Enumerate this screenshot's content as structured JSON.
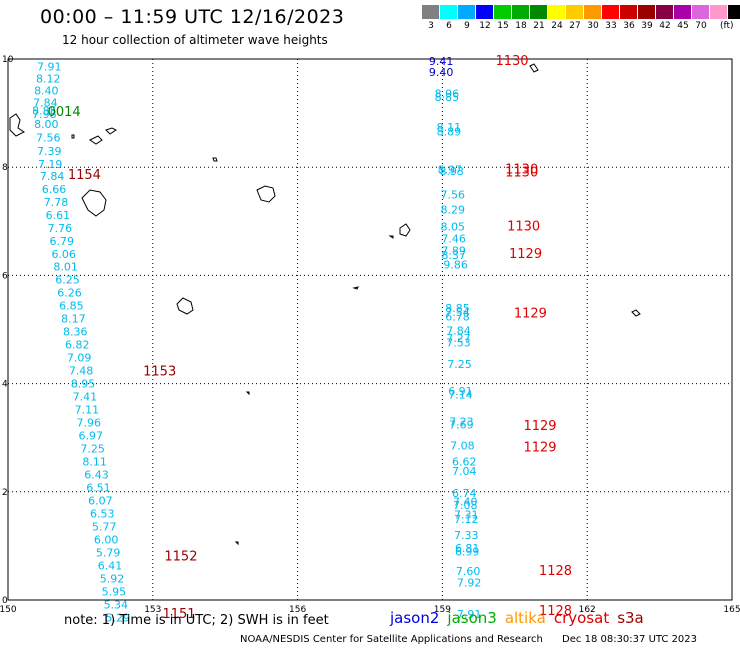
{
  "title": "00:00 – 11:59 UTC 12/16/2023",
  "subtitle": "12 hour collection of altimeter wave heights",
  "colorbar": {
    "colors": [
      "#808080",
      "#00ffff",
      "#00aaff",
      "#0000ff",
      "#00cc00",
      "#00aa00",
      "#008800",
      "#ffff00",
      "#ffcc00",
      "#ff9900",
      "#ff0000",
      "#cc0000",
      "#990000",
      "#880044",
      "#aa00aa",
      "#dd66dd",
      "#ff99cc",
      "#000000"
    ],
    "labels": [
      "3",
      "6",
      "9",
      "12",
      "15",
      "18",
      "21",
      "24",
      "27",
      "30",
      "33",
      "36",
      "39",
      "42",
      "45",
      "70"
    ],
    "unit": "(ft)"
  },
  "axes": {
    "x_ticks": [
      "150",
      "153",
      "156",
      "159",
      "162",
      "165"
    ],
    "y_ticks": [
      "0",
      "2",
      "4",
      "6",
      "8",
      "10"
    ]
  },
  "tracks": [
    {
      "satellite": "cryosat",
      "color": "#00bbee",
      "points": [
        {
          "lon": 150.6,
          "lat": 9.86,
          "v": "7.91"
        },
        {
          "lon": 150.58,
          "lat": 9.64,
          "v": "8.12"
        },
        {
          "lon": 150.54,
          "lat": 9.42,
          "v": "8.40"
        },
        {
          "lon": 150.52,
          "lat": 9.2,
          "v": "7.84"
        },
        {
          "lon": 150.5,
          "lat": 9.05,
          "v": "8.85"
        },
        {
          "lon": 150.5,
          "lat": 8.98,
          "v": "7.98"
        },
        {
          "lon": 150.54,
          "lat": 8.8,
          "v": "8.00"
        },
        {
          "lon": 150.58,
          "lat": 8.55,
          "v": "7.56"
        },
        {
          "lon": 150.6,
          "lat": 8.3,
          "v": "7.39"
        },
        {
          "lon": 150.62,
          "lat": 8.06,
          "v": "7.19"
        },
        {
          "lon": 150.66,
          "lat": 7.84,
          "v": "7.84"
        },
        {
          "lon": 150.7,
          "lat": 7.6,
          "v": "6.66"
        },
        {
          "lon": 150.74,
          "lat": 7.36,
          "v": "7.78"
        },
        {
          "lon": 150.78,
          "lat": 7.12,
          "v": "6.61"
        },
        {
          "lon": 150.82,
          "lat": 6.88,
          "v": "7.76"
        },
        {
          "lon": 150.86,
          "lat": 6.64,
          "v": "6.79"
        },
        {
          "lon": 150.9,
          "lat": 6.4,
          "v": "6.06"
        },
        {
          "lon": 150.94,
          "lat": 6.16,
          "v": "8.01"
        },
        {
          "lon": 150.98,
          "lat": 5.92,
          "v": "6.25"
        },
        {
          "lon": 151.02,
          "lat": 5.68,
          "v": "6.26"
        },
        {
          "lon": 151.06,
          "lat": 5.44,
          "v": "6.85"
        },
        {
          "lon": 151.1,
          "lat": 5.2,
          "v": "8.17"
        },
        {
          "lon": 151.14,
          "lat": 4.96,
          "v": "8.36"
        },
        {
          "lon": 151.18,
          "lat": 4.72,
          "v": "6.82"
        },
        {
          "lon": 151.22,
          "lat": 4.48,
          "v": "7.09"
        },
        {
          "lon": 151.26,
          "lat": 4.24,
          "v": "7.48"
        },
        {
          "lon": 151.3,
          "lat": 4.0,
          "v": "8.95"
        },
        {
          "lon": 151.34,
          "lat": 3.76,
          "v": "7.41"
        },
        {
          "lon": 151.38,
          "lat": 3.52,
          "v": "7.11"
        },
        {
          "lon": 151.42,
          "lat": 3.28,
          "v": "7.96"
        },
        {
          "lon": 151.46,
          "lat": 3.04,
          "v": "6.97"
        },
        {
          "lon": 151.5,
          "lat": 2.8,
          "v": "7.25"
        },
        {
          "lon": 151.54,
          "lat": 2.56,
          "v": "8.11"
        },
        {
          "lon": 151.58,
          "lat": 2.32,
          "v": "6.43"
        },
        {
          "lon": 151.62,
          "lat": 2.08,
          "v": "6.51"
        },
        {
          "lon": 151.66,
          "lat": 1.84,
          "v": "6.07"
        },
        {
          "lon": 151.7,
          "lat": 1.6,
          "v": "6.53"
        },
        {
          "lon": 151.74,
          "lat": 1.36,
          "v": "5.77"
        },
        {
          "lon": 151.78,
          "lat": 1.12,
          "v": "6.00"
        },
        {
          "lon": 151.82,
          "lat": 0.88,
          "v": "5.79"
        },
        {
          "lon": 151.86,
          "lat": 0.64,
          "v": "6.41"
        },
        {
          "lon": 151.9,
          "lat": 0.4,
          "v": "5.92"
        },
        {
          "lon": 151.94,
          "lat": 0.16,
          "v": "5.95"
        },
        {
          "lon": 151.98,
          "lat": -0.08,
          "v": "5.34"
        },
        {
          "lon": 152.02,
          "lat": -0.32,
          "v": "5.29"
        }
      ]
    },
    {
      "satellite": "jason3",
      "color": "#00bbee",
      "points": [
        {
          "lon": 158.88,
          "lat": 8.74,
          "v": "8.11"
        },
        {
          "lon": 158.88,
          "lat": 8.66,
          "v": "8.89"
        },
        {
          "lon": 158.84,
          "lat": 9.36,
          "v": "8.96"
        },
        {
          "lon": 158.84,
          "lat": 9.3,
          "v": "8.85"
        },
        {
          "lon": 158.9,
          "lat": 7.96,
          "v": "8.97"
        },
        {
          "lon": 158.94,
          "lat": 7.93,
          "v": "8.93"
        },
        {
          "lon": 158.96,
          "lat": 7.5,
          "v": "7.56"
        },
        {
          "lon": 158.96,
          "lat": 7.22,
          "v": "8.29"
        },
        {
          "lon": 158.96,
          "lat": 6.9,
          "v": "8.05"
        },
        {
          "lon": 158.98,
          "lat": 6.68,
          "v": "7.46"
        },
        {
          "lon": 158.98,
          "lat": 6.46,
          "v": "7.89"
        },
        {
          "lon": 158.98,
          "lat": 6.38,
          "v": "8.37"
        },
        {
          "lon": 159.02,
          "lat": 6.2,
          "v": "9.86"
        },
        {
          "lon": 159.06,
          "lat": 5.4,
          "v": "8.85"
        },
        {
          "lon": 159.06,
          "lat": 5.32,
          "v": "7.54"
        },
        {
          "lon": 159.06,
          "lat": 5.24,
          "v": "6.78"
        },
        {
          "lon": 159.08,
          "lat": 4.98,
          "v": "7.84"
        },
        {
          "lon": 159.08,
          "lat": 4.84,
          "v": "7.27"
        },
        {
          "lon": 159.08,
          "lat": 4.76,
          "v": "7.53"
        },
        {
          "lon": 159.1,
          "lat": 4.36,
          "v": "7.25"
        },
        {
          "lon": 159.12,
          "lat": 3.86,
          "v": "6.91"
        },
        {
          "lon": 159.12,
          "lat": 3.8,
          "v": "7.14"
        },
        {
          "lon": 159.14,
          "lat": 3.3,
          "v": "7.23"
        },
        {
          "lon": 159.14,
          "lat": 3.24,
          "v": "7.69"
        },
        {
          "lon": 159.16,
          "lat": 2.86,
          "v": "7.08"
        },
        {
          "lon": 159.2,
          "lat": 2.56,
          "v": "6.62"
        },
        {
          "lon": 159.2,
          "lat": 2.38,
          "v": "7.04"
        },
        {
          "lon": 159.2,
          "lat": 1.98,
          "v": "6.74"
        },
        {
          "lon": 159.22,
          "lat": 1.82,
          "v": "7.40"
        },
        {
          "lon": 159.22,
          "lat": 1.76,
          "v": "7.08"
        },
        {
          "lon": 159.24,
          "lat": 1.58,
          "v": "7.31"
        },
        {
          "lon": 159.24,
          "lat": 1.5,
          "v": "7.12"
        },
        {
          "lon": 159.24,
          "lat": 1.2,
          "v": "7.33"
        },
        {
          "lon": 159.26,
          "lat": 0.96,
          "v": "6.81"
        },
        {
          "lon": 159.26,
          "lat": 0.9,
          "v": "6.99"
        },
        {
          "lon": 159.28,
          "lat": 0.54,
          "v": "7.60"
        },
        {
          "lon": 159.3,
          "lat": 0.32,
          "v": "7.92"
        },
        {
          "lon": 159.3,
          "lat": -0.26,
          "v": "7.91"
        }
      ]
    },
    {
      "satellite": "jason2",
      "color": "#0000cc",
      "points": [
        {
          "lon": 158.72,
          "lat": 9.96,
          "v": "9.41"
        },
        {
          "lon": 158.72,
          "lat": 9.76,
          "v": "9.40"
        }
      ]
    }
  ],
  "time_labels": [
    {
      "lon": 160.1,
      "lat": 9.96,
      "text": "1130",
      "color": "#e00000"
    },
    {
      "lon": 150.82,
      "lat": 9.02,
      "text": "0014",
      "color": "#008800"
    },
    {
      "lon": 151.24,
      "lat": 7.86,
      "text": "1154",
      "color": "#990000"
    },
    {
      "lon": 160.3,
      "lat": 7.9,
      "text": "1130",
      "color": "#e00000"
    },
    {
      "lon": 160.3,
      "lat": 7.96,
      "text": "1130",
      "color": "#e00000"
    },
    {
      "lon": 160.34,
      "lat": 6.9,
      "text": "1130",
      "color": "#e00000"
    },
    {
      "lon": 160.38,
      "lat": 6.4,
      "text": "1129",
      "color": "#e00000"
    },
    {
      "lon": 160.48,
      "lat": 5.3,
      "text": "1129",
      "color": "#e00000"
    },
    {
      "lon": 152.8,
      "lat": 4.22,
      "text": "1153",
      "color": "#990000"
    },
    {
      "lon": 160.68,
      "lat": 3.22,
      "text": "1129",
      "color": "#e00000"
    },
    {
      "lon": 160.68,
      "lat": 2.82,
      "text": "1129",
      "color": "#e00000"
    },
    {
      "lon": 153.24,
      "lat": 0.8,
      "text": "1152",
      "color": "#990000"
    },
    {
      "lon": 161.0,
      "lat": 0.54,
      "text": "1128",
      "color": "#e00000"
    },
    {
      "lon": 153.2,
      "lat": -0.26,
      "text": "1151",
      "color": "#990000"
    },
    {
      "lon": 161.0,
      "lat": -0.2,
      "text": "1128",
      "color": "#e00000"
    }
  ],
  "note": "note:  1) Time is in UTC;  2) SWH is in feet",
  "legend": [
    {
      "name": "jason2",
      "color": "#0000dd"
    },
    {
      "name": "jason3",
      "color": "#00aa00"
    },
    {
      "name": "altika",
      "color": "#ff9900"
    },
    {
      "name": "cryosat",
      "color": "#dd0000"
    },
    {
      "name": "s3a",
      "color": "#990000"
    }
  ],
  "credit": "NOAA/NESDIS Center for Satellite Applications and Research",
  "generated": "Dec 18 08:30:37 UTC 2023"
}
